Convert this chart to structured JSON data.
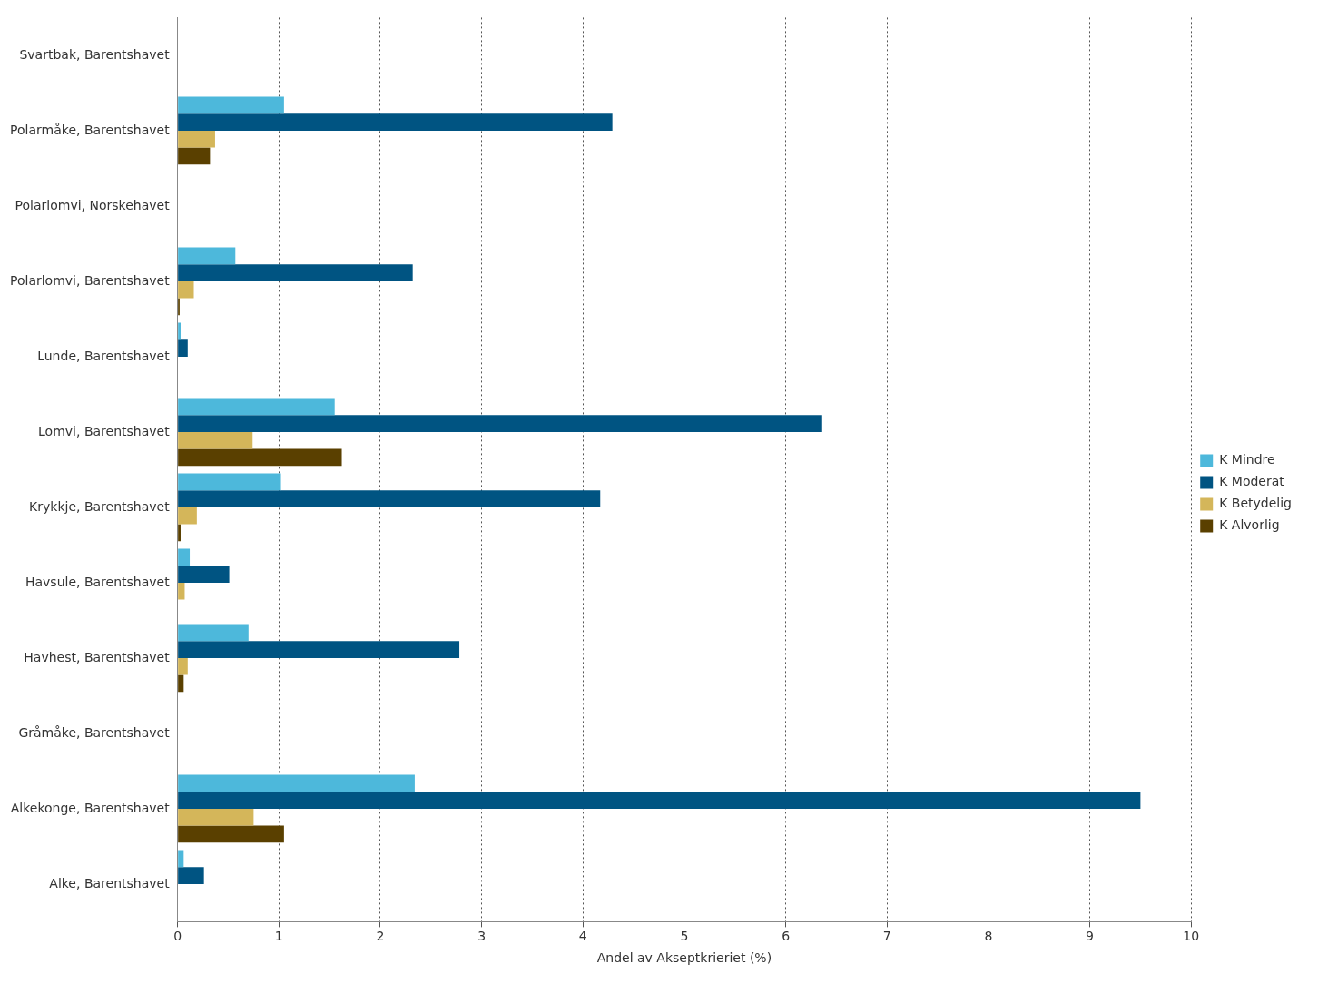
{
  "chart_data": {
    "type": "bar",
    "orientation": "horizontal",
    "xlabel": "Andel av Akseptkrieriet (%)",
    "categories": [
      "Svartbak, Barentshavet",
      "Polarmåke, Barentshavet",
      "Polarlomvi, Norskehavet",
      "Polarlomvi, Barentshavet",
      "Lunde, Barentshavet",
      "Lomvi, Barentshavet",
      "Krykkje, Barentshavet",
      "Havsule, Barentshavet",
      "Havhest, Barentshavet",
      "Gråmåke, Barentshavet",
      "Alkekonge, Barentshavet",
      "Alke, Barentshavet"
    ],
    "series": [
      {
        "name": "K Mindre",
        "color": "#4db8db",
        "values": [
          0,
          1.05,
          0,
          0.57,
          0.03,
          1.55,
          1.02,
          0.12,
          0.7,
          0,
          2.34,
          0.06
        ]
      },
      {
        "name": "K Moderat",
        "color": "#005482",
        "values": [
          0,
          4.29,
          0,
          2.32,
          0.1,
          6.36,
          4.17,
          0.51,
          2.78,
          0,
          9.5,
          0.26
        ]
      },
      {
        "name": "K Betydelig",
        "color": "#d4b65a",
        "values": [
          0,
          0.37,
          0,
          0.16,
          0,
          0.74,
          0.19,
          0.07,
          0.1,
          0,
          0.75,
          0
        ]
      },
      {
        "name": "K Alvorlig",
        "color": "#5a4000",
        "values": [
          0,
          0.32,
          0,
          0.02,
          0,
          1.62,
          0.03,
          0,
          0.06,
          0,
          1.05,
          0
        ]
      }
    ],
    "xlim": [
      0,
      10
    ],
    "xticks": [
      0,
      1,
      2,
      3,
      4,
      5,
      6,
      7,
      8,
      9,
      10
    ],
    "grid": "x",
    "legend": "right"
  }
}
